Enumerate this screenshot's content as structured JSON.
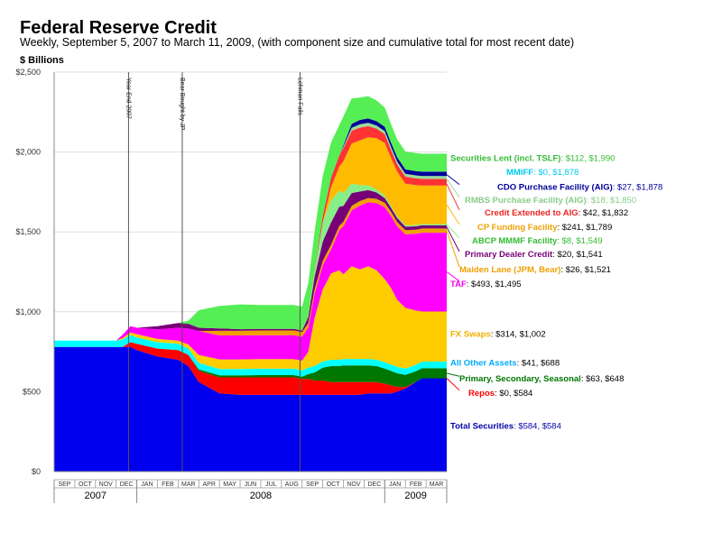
{
  "header": {
    "title": "Federal Reserve Credit",
    "subtitle": "Weekly, September 5, 2007 to March 11, 2009, (with component size and cumulative total for most recent date)",
    "unit_label": "$ Billions"
  },
  "chart_data": {
    "type": "area",
    "stacked": true,
    "title": "Federal Reserve Credit",
    "ylabel": "$ Billions",
    "ylim": [
      0,
      2500
    ],
    "yticks": [
      0,
      500,
      1000,
      1500,
      2000,
      2500
    ],
    "ytick_labels": [
      "$0",
      "$500",
      "$1,000",
      "$1,500",
      "$2,000",
      "$2,500"
    ],
    "months": [
      "SEP",
      "OCT",
      "NOV",
      "DEC",
      "JAN",
      "FEB",
      "MAR",
      "APR",
      "MAY",
      "JUN",
      "JUL",
      "AUG",
      "SEP",
      "OCT",
      "NOV",
      "DEC",
      "JAN",
      "FEB",
      "MAR"
    ],
    "years": [
      {
        "label": "2007",
        "first_month": 0,
        "last_month": 3
      },
      {
        "label": "2008",
        "first_month": 4,
        "last_month": 15
      },
      {
        "label": "2009",
        "first_month": 16,
        "last_month": 18
      }
    ],
    "x": [
      0,
      1,
      2,
      3,
      3.3,
      3.7,
      4,
      5,
      6,
      6.5,
      7,
      8,
      9,
      10,
      11,
      11.6,
      12,
      12.3,
      12.6,
      13,
      13.4,
      13.8,
      14,
      14.4,
      14.8,
      15.2,
      15.6,
      16,
      16.3,
      16.6,
      17,
      17.5,
      17.8
    ],
    "events": [
      {
        "label": "Year End 2007",
        "x": 3.6
      },
      {
        "label": "Bear Bought by JP",
        "x": 6.2
      },
      {
        "label": "Lehman Fails",
        "x": 11.9
      }
    ],
    "series": [
      {
        "name": "Total Securities",
        "color": "#0000ee",
        "value": "$584",
        "cumulative": "$584",
        "values": [
          780,
          780,
          780,
          780,
          780,
          780,
          760,
          720,
          700,
          660,
          560,
          490,
          480,
          480,
          480,
          480,
          480,
          480,
          480,
          480,
          480,
          480,
          480,
          480,
          480,
          490,
          490,
          490,
          490,
          500,
          520,
          560,
          584
        ]
      },
      {
        "name": "Repos",
        "color": "#ff0000",
        "value": "$0",
        "cumulative": "$584",
        "values": [
          0,
          0,
          0,
          0,
          0,
          30,
          40,
          50,
          60,
          70,
          70,
          100,
          110,
          110,
          110,
          110,
          100,
          100,
          90,
          90,
          80,
          80,
          80,
          80,
          80,
          70,
          70,
          60,
          50,
          30,
          10,
          0,
          0
        ]
      },
      {
        "name": "Primary, Secondary, Seasonal",
        "color": "#007700",
        "value": "$63",
        "cumulative": "$648",
        "values": [
          0,
          0,
          0,
          0,
          0,
          0,
          0,
          0,
          0,
          0,
          10,
          12,
          12,
          14,
          14,
          14,
          14,
          30,
          50,
          80,
          100,
          100,
          105,
          105,
          105,
          105,
          100,
          95,
          90,
          85,
          75,
          68,
          63
        ]
      },
      {
        "name": "All Other Assets",
        "color": "#00ffff",
        "value": "$41",
        "cumulative": "$688",
        "values": [
          40,
          40,
          40,
          40,
          45,
          45,
          40,
          40,
          40,
          40,
          40,
          40,
          40,
          40,
          40,
          40,
          40,
          40,
          40,
          40,
          40,
          40,
          40,
          40,
          40,
          40,
          40,
          40,
          40,
          40,
          40,
          40,
          41
        ]
      },
      {
        "name": "FX Swaps",
        "color": "#ffcc00",
        "value": "$314",
        "cumulative": "$1,002",
        "values": [
          0,
          0,
          0,
          0,
          10,
          15,
          20,
          20,
          20,
          25,
          50,
          60,
          60,
          60,
          60,
          60,
          60,
          100,
          300,
          450,
          540,
          560,
          530,
          580,
          560,
          580,
          560,
          520,
          480,
          420,
          380,
          340,
          314
        ]
      },
      {
        "name": "TAF",
        "color": "#ff00ff",
        "value": "$493",
        "cumulative": "$1,495",
        "values": [
          0,
          0,
          0,
          0,
          20,
          40,
          40,
          60,
          80,
          100,
          150,
          150,
          150,
          150,
          150,
          150,
          150,
          150,
          150,
          150,
          150,
          250,
          300,
          350,
          400,
          400,
          420,
          450,
          450,
          460,
          460,
          480,
          493
        ]
      },
      {
        "name": "Maiden Lane (JPM, Bear)",
        "color": "#f0a000",
        "value": "$26",
        "cumulative": "$1,521",
        "values": [
          0,
          0,
          0,
          0,
          0,
          0,
          0,
          0,
          0,
          0,
          0,
          29,
          29,
          29,
          29,
          29,
          29,
          29,
          29,
          29,
          29,
          28,
          28,
          28,
          28,
          27,
          27,
          27,
          27,
          27,
          26,
          26,
          26
        ]
      },
      {
        "name": "Primary Dealer Credit",
        "color": "#770077",
        "value": "$20",
        "cumulative": "$1,541",
        "values": [
          0,
          0,
          0,
          0,
          0,
          0,
          0,
          20,
          30,
          30,
          20,
          15,
          10,
          10,
          10,
          10,
          10,
          40,
          80,
          120,
          140,
          120,
          100,
          80,
          60,
          50,
          40,
          30,
          25,
          25,
          22,
          21,
          20
        ]
      },
      {
        "name": "ABCP MMMF Facility",
        "color": "#88ee88",
        "value": "$8",
        "cumulative": "$1,549",
        "values": [
          0,
          0,
          0,
          0,
          0,
          0,
          0,
          0,
          0,
          0,
          0,
          0,
          0,
          0,
          0,
          0,
          0,
          10,
          40,
          120,
          140,
          100,
          80,
          60,
          40,
          30,
          20,
          15,
          12,
          10,
          9,
          8,
          8
        ]
      },
      {
        "name": "CP Funding Facility",
        "color": "#ffbb00",
        "value": "$241",
        "cumulative": "$1,789",
        "values": [
          0,
          0,
          0,
          0,
          0,
          0,
          0,
          0,
          0,
          0,
          0,
          0,
          0,
          0,
          0,
          0,
          0,
          0,
          0,
          0,
          80,
          150,
          200,
          250,
          280,
          300,
          320,
          330,
          300,
          280,
          260,
          250,
          241
        ]
      },
      {
        "name": "Credit Extended to AIG",
        "color": "#ff3333",
        "value": "$42",
        "cumulative": "$1,832",
        "values": [
          0,
          0,
          0,
          0,
          0,
          0,
          0,
          0,
          0,
          0,
          0,
          0,
          0,
          0,
          0,
          0,
          0,
          0,
          10,
          40,
          60,
          70,
          80,
          80,
          80,
          70,
          60,
          55,
          50,
          45,
          44,
          43,
          42
        ]
      },
      {
        "name": "RMBS Purchase Facility (AIG)",
        "color": "#99dd99",
        "value": "$18",
        "cumulative": "$1,850",
        "values": [
          0,
          0,
          0,
          0,
          0,
          0,
          0,
          0,
          0,
          0,
          0,
          0,
          0,
          0,
          0,
          0,
          0,
          0,
          0,
          0,
          0,
          0,
          10,
          18,
          20,
          20,
          19,
          19,
          19,
          18,
          18,
          18,
          18
        ]
      },
      {
        "name": "CDO Purchase Facility (AIG)",
        "color": "#000099",
        "value": "$27",
        "cumulative": "$1,878",
        "values": [
          0,
          0,
          0,
          0,
          0,
          0,
          0,
          0,
          0,
          0,
          0,
          0,
          0,
          0,
          0,
          0,
          0,
          0,
          0,
          0,
          0,
          0,
          10,
          25,
          28,
          28,
          27,
          27,
          27,
          27,
          27,
          27,
          27
        ]
      },
      {
        "name": "MMIFF",
        "color": "#00ddff",
        "value": "$0",
        "cumulative": "$1,878",
        "values": [
          0,
          0,
          0,
          0,
          0,
          0,
          0,
          0,
          0,
          0,
          0,
          0,
          0,
          0,
          0,
          0,
          0,
          0,
          0,
          0,
          0,
          0,
          0,
          0,
          0,
          0,
          0,
          0,
          0,
          0,
          0,
          0,
          0
        ]
      },
      {
        "name": "Securities Lent (incl. TSLF)",
        "color": "#55ee55",
        "value": "$112",
        "cumulative": "$1,990",
        "values": [
          0,
          0,
          0,
          0,
          0,
          0,
          0,
          0,
          0,
          20,
          110,
          140,
          155,
          150,
          150,
          150,
          150,
          200,
          230,
          250,
          220,
          190,
          180,
          160,
          140,
          140,
          130,
          120,
          115,
          112,
          112,
          112,
          112
        ]
      }
    ],
    "labels": [
      {
        "series": 14,
        "name": "Securities Lent (incl. TSLF)",
        "name_color": "#33bb33",
        "value_color": "#33bb33",
        "label_y": 1960,
        "anchor_y": 1940
      },
      {
        "series": 13,
        "name": "MMIFF",
        "name_color": "#00ccee",
        "value_color": "#00ccee",
        "label_y": 1875,
        "anchor_y": 1870
      },
      {
        "series": 12,
        "name": "CDO Purchase Facility (AIG)",
        "name_color": "#000099",
        "value_color": "#000099",
        "label_y": 1780,
        "anchor_y": 1858
      },
      {
        "series": 11,
        "name": "RMBS Purchase Facility (AIG)",
        "name_color": "#88cc88",
        "value_color": "#88cc88",
        "label_y": 1700,
        "anchor_y": 1830
      },
      {
        "series": 10,
        "name": "Credit Extended to AIG",
        "name_color": "#ee2222",
        "value_color": "#000000",
        "label_y": 1620,
        "anchor_y": 1800
      },
      {
        "series": 9,
        "name": "CP Funding Facility",
        "name_color": "#f0a000",
        "value_color": "#000000",
        "label_y": 1530,
        "anchor_y": 1670
      },
      {
        "series": 8,
        "name": "ABCP MMMF Facility",
        "name_color": "#33bb33",
        "value_color": "#33bb33",
        "label_y": 1445,
        "anchor_y": 1545
      },
      {
        "series": 7,
        "name": "Primary Dealer Credit",
        "name_color": "#770077",
        "value_color": "#000000",
        "label_y": 1360,
        "anchor_y": 1530
      },
      {
        "series": 6,
        "name": "Maiden Lane (JPM, Bear)",
        "name_color": "#f0a000",
        "value_color": "#000000",
        "label_y": 1265,
        "anchor_y": 1508
      },
      {
        "series": 5,
        "name": "TAF",
        "name_color": "#ee00ee",
        "value_color": "#000000",
        "label_y": 1175,
        "anchor_y": 1250
      },
      {
        "series": 4,
        "name": "FX Swaps",
        "name_color": "#f0b000",
        "value_color": "#000000",
        "label_y": 860,
        "anchor_y": 850
      },
      {
        "series": 3,
        "name": "All Other Assets",
        "name_color": "#00aaff",
        "value_color": "#000000",
        "label_y": 680,
        "anchor_y": 668
      },
      {
        "series": 2,
        "name": "Primary, Secondary, Seasonal",
        "name_color": "#007700",
        "value_color": "#000000",
        "label_y": 580,
        "anchor_y": 615
      },
      {
        "series": 1,
        "name": "Repos",
        "name_color": "#ff0000",
        "value_color": "#000000",
        "label_y": 492,
        "anchor_y": 584
      },
      {
        "series": 0,
        "name": "Total Securities",
        "name_color": "#0000aa",
        "value_color": "#0000aa",
        "label_y": 285,
        "anchor_y": 300
      }
    ]
  }
}
